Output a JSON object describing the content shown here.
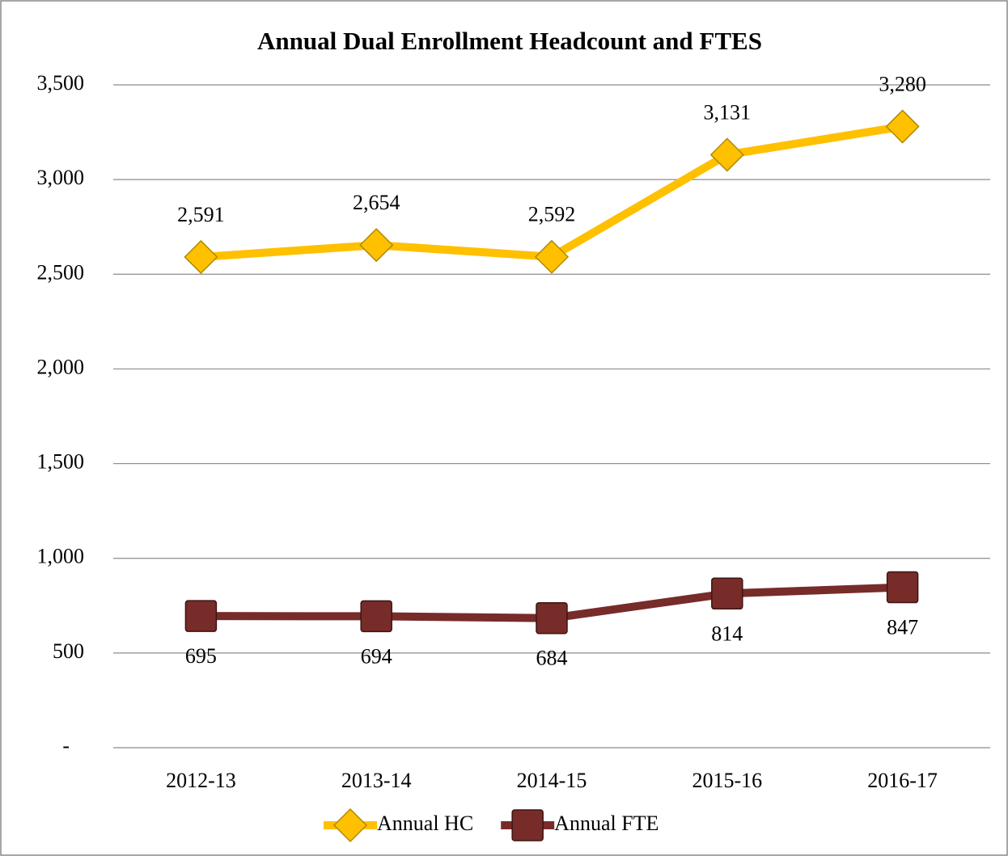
{
  "chart_data": {
    "type": "line",
    "title": "Annual Dual Enrollment Headcount and FTES",
    "categories": [
      "2012-13",
      "2013-14",
      "2014-15",
      "2015-16",
      "2016-17"
    ],
    "series": [
      {
        "name": "Annual HC",
        "color": "#ffc000",
        "marker": "diamond",
        "values": [
          2591,
          2654,
          2592,
          3131,
          3280
        ],
        "value_labels": [
          "2,591",
          "2,654",
          "2,592",
          "3,131",
          "3,280"
        ]
      },
      {
        "name": "Annual FTE",
        "color": "#772c2a",
        "marker": "square",
        "values": [
          695,
          694,
          684,
          814,
          847
        ]
      }
    ],
    "ylim": [
      0,
      3500
    ],
    "yticks": [
      {
        "value": 0,
        "label": "-"
      },
      {
        "value": 500,
        "label": "500"
      },
      {
        "value": 1000,
        "label": "1,000"
      },
      {
        "value": 1500,
        "label": "1,500"
      },
      {
        "value": 2000,
        "label": "2,000"
      },
      {
        "value": 2500,
        "label": "2,500"
      },
      {
        "value": 3000,
        "label": "3,000"
      },
      {
        "value": 3500,
        "label": "3,500"
      }
    ],
    "grid": true,
    "legend": "bottom"
  }
}
